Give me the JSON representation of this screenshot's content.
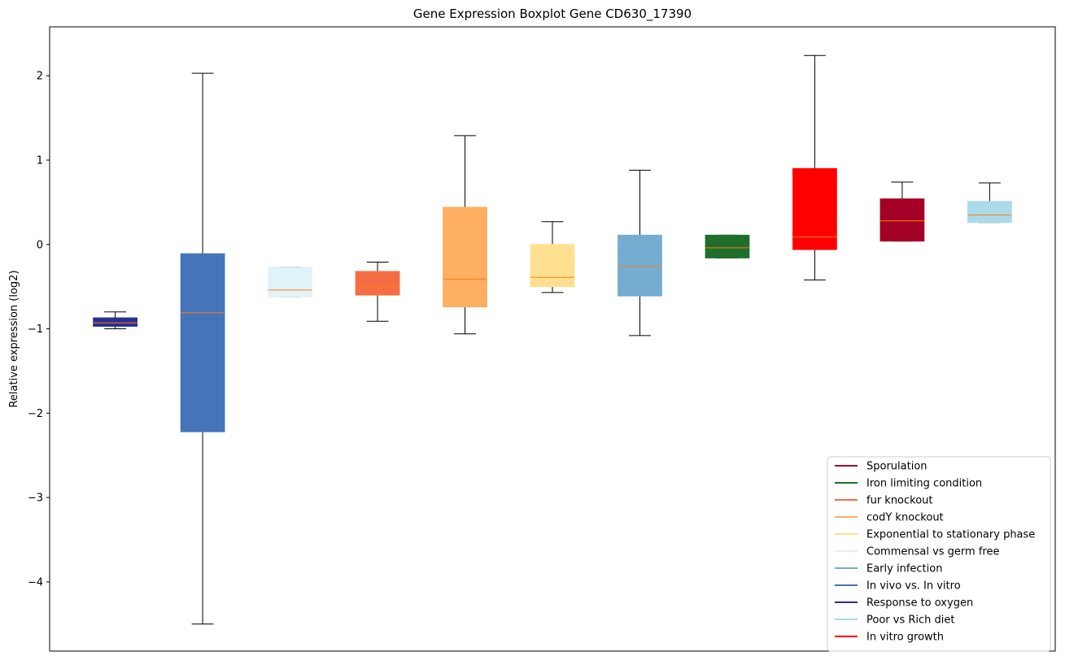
{
  "chart_data": {
    "type": "box",
    "title": "Gene Expression Boxplot Gene CD630_17390",
    "xlabel": "",
    "ylabel": "Relative expression (log2)",
    "ylim": [
      -4.82,
      2.58
    ],
    "yticks": [
      -4,
      -3,
      -2,
      -1,
      0,
      1,
      2
    ],
    "ytick_labels": [
      "−4",
      "−3",
      "−2",
      "−1",
      "0",
      "1",
      "2"
    ],
    "median_color": "#ff7f0e",
    "boxes": [
      {
        "name": "Response to oxygen",
        "color": "#2b2f8f",
        "whislo": -1.0,
        "q1": -0.97,
        "med": -0.93,
        "q3": -0.87,
        "whishi": -0.8
      },
      {
        "name": "In vivo vs. In vitro",
        "color": "#4575b8",
        "whislo": -4.5,
        "q1": -2.22,
        "med": -0.81,
        "q3": -0.11,
        "whishi": 2.03
      },
      {
        "name": "Commensal vs germ free",
        "color": "#e0f3f8",
        "whislo": -0.62,
        "q1": -0.62,
        "med": -0.54,
        "q3": -0.27,
        "whishi": -0.27
      },
      {
        "name": "fur knockout",
        "color": "#f46d43",
        "whislo": -0.91,
        "q1": -0.6,
        "med": -0.5,
        "q3": -0.32,
        "whishi": -0.21
      },
      {
        "name": "codY knockout",
        "color": "#fdae61",
        "whislo": -1.06,
        "q1": -0.74,
        "med": -0.41,
        "q3": 0.44,
        "whishi": 1.29
      },
      {
        "name": "Exponential to stationary phase",
        "color": "#fee090",
        "whislo": -0.57,
        "q1": -0.5,
        "med": -0.39,
        "q3": 0.0,
        "whishi": 0.27
      },
      {
        "name": "Early infection",
        "color": "#74add1",
        "whislo": -1.08,
        "q1": -0.61,
        "med": -0.26,
        "q3": 0.11,
        "whishi": 0.88
      },
      {
        "name": "Iron limiting condition",
        "color": "#1f6e2b",
        "whislo": -0.16,
        "q1": -0.16,
        "med": -0.04,
        "q3": 0.11,
        "whishi": 0.11
      },
      {
        "name": "In vitro growth",
        "color": "#ff0000",
        "whislo": -0.42,
        "q1": -0.06,
        "med": 0.09,
        "q3": 0.9,
        "whishi": 2.24
      },
      {
        "name": "Sporulation",
        "color": "#a50026",
        "whislo": 0.04,
        "q1": 0.04,
        "med": 0.28,
        "q3": 0.54,
        "whishi": 0.74
      },
      {
        "name": "Poor vs Rich diet",
        "color": "#abd9e9",
        "whislo": 0.26,
        "q1": 0.26,
        "med": 0.35,
        "q3": 0.51,
        "whishi": 0.73
      }
    ],
    "legend_position": "lower-right",
    "legend": [
      {
        "label": "Sporulation",
        "color": "#a50026"
      },
      {
        "label": "Iron limiting condition",
        "color": "#1f6e2b"
      },
      {
        "label": "fur knockout",
        "color": "#f46d43"
      },
      {
        "label": "codY knockout",
        "color": "#fdae61"
      },
      {
        "label": "Exponential to stationary phase",
        "color": "#fee090"
      },
      {
        "label": "Commensal vs germ free",
        "color": "#e0f3f8"
      },
      {
        "label": "Early infection",
        "color": "#74add1"
      },
      {
        "label": "In vivo vs. In vitro",
        "color": "#4575b8"
      },
      {
        "label": "Response to oxygen",
        "color": "#2b2f8f"
      },
      {
        "label": "Poor vs Rich diet",
        "color": "#abd9e9"
      },
      {
        "label": "In vitro growth",
        "color": "#ff0000"
      }
    ]
  }
}
